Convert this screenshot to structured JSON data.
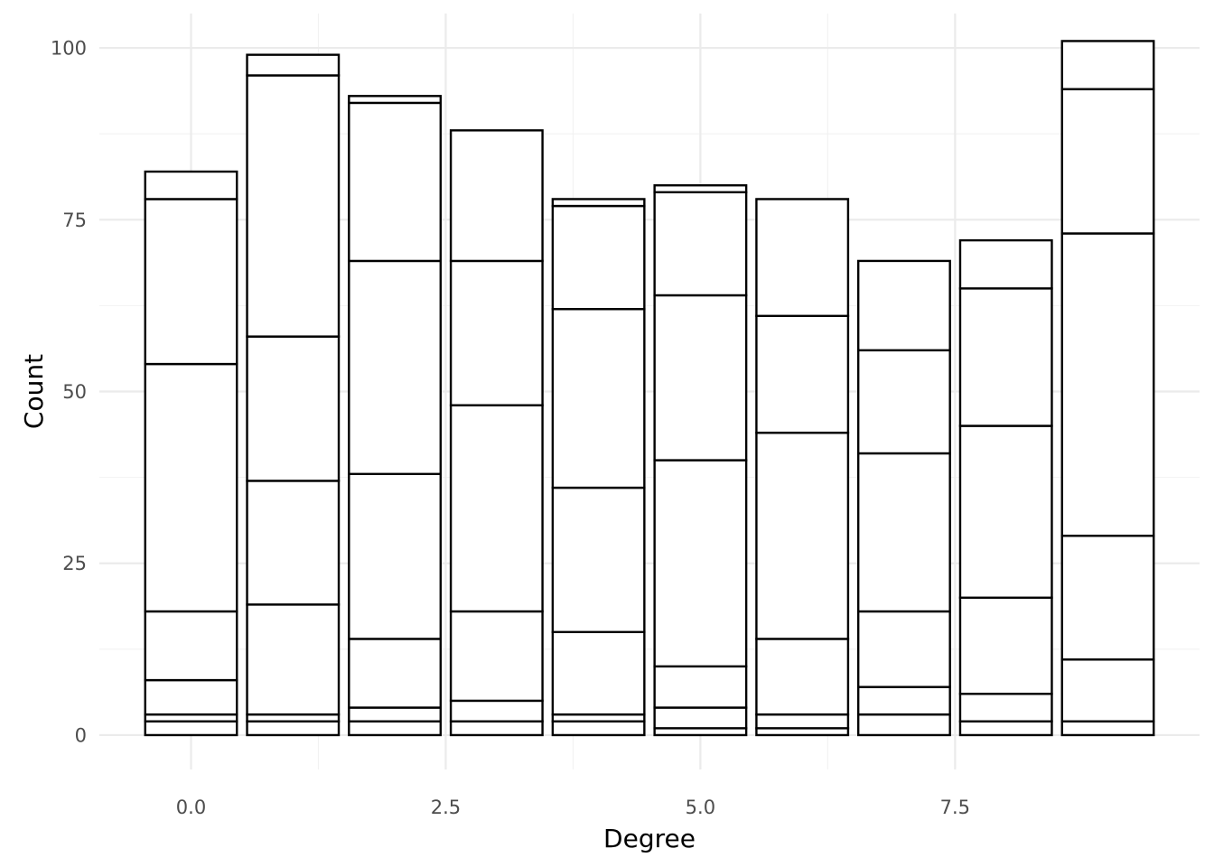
{
  "chart_data": {
    "type": "bar",
    "stacked": true,
    "title": "",
    "xlabel": "Degree",
    "ylabel": "Count",
    "xlim": [
      -0.9,
      9.9
    ],
    "ylim": [
      -5,
      105
    ],
    "x_ticks": [
      0.0,
      2.5,
      5.0,
      7.5
    ],
    "x_tick_labels": [
      "0.0",
      "2.5",
      "5.0",
      "7.5"
    ],
    "y_ticks": [
      0,
      25,
      50,
      75,
      100
    ],
    "y_tick_labels": [
      "0",
      "25",
      "50",
      "75",
      "100"
    ],
    "grid": true,
    "legend": "none",
    "fill_color": "#ffffff",
    "outline_color": "#000000",
    "bar_width": 0.9,
    "x": [
      0,
      1,
      2,
      3,
      4,
      5,
      6,
      7,
      8,
      9
    ],
    "cumulative_boundaries": [
      [
        2,
        3,
        8,
        18,
        54,
        78,
        82
      ],
      [
        2,
        3,
        19,
        37,
        58,
        96,
        99
      ],
      [
        2,
        4,
        14,
        38,
        69,
        92,
        93
      ],
      [
        2,
        5,
        18,
        48,
        69,
        88
      ],
      [
        2,
        3,
        15,
        36,
        62,
        77,
        78
      ],
      [
        1,
        4,
        10,
        40,
        64,
        79,
        80
      ],
      [
        1,
        3,
        14,
        44,
        61,
        78
      ],
      [
        3,
        7,
        18,
        41,
        56,
        69
      ],
      [
        2,
        6,
        20,
        45,
        65,
        72
      ],
      [
        2,
        11,
        29,
        73,
        94,
        101
      ]
    ],
    "totals": [
      82,
      99,
      93,
      88,
      78,
      80,
      78,
      69,
      72,
      101
    ]
  }
}
